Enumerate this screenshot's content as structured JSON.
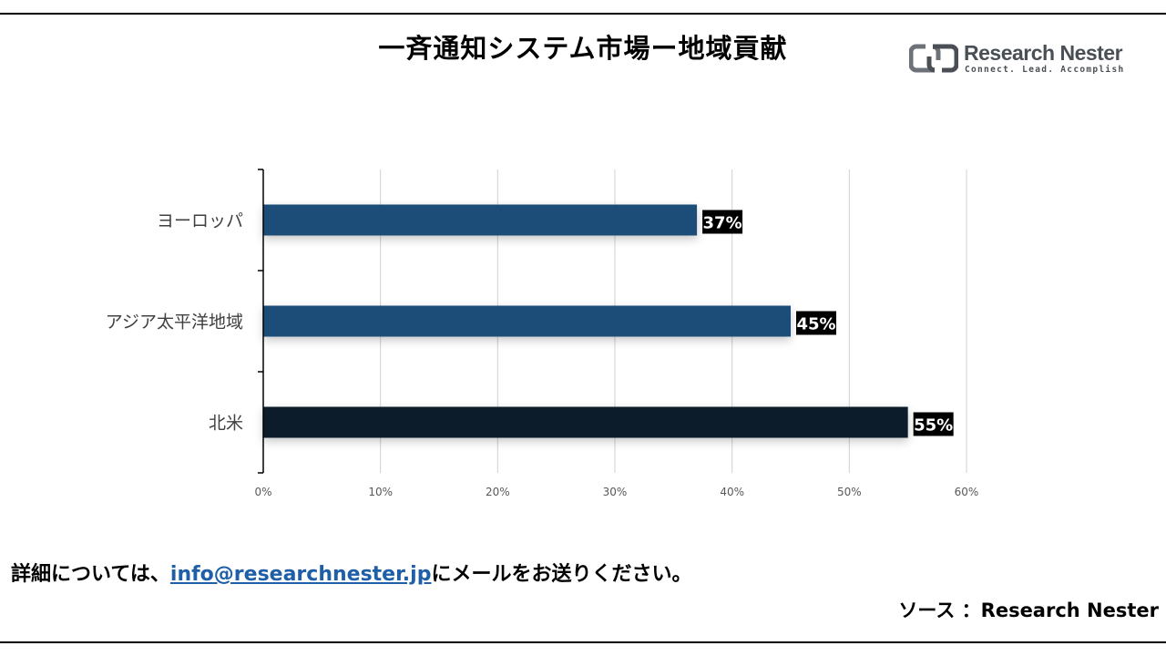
{
  "header": {
    "title": "一斉通知システム市場ー地域貢献"
  },
  "logo": {
    "name": "Research Nester",
    "tagline": "Connect. Lead. Accomplish"
  },
  "chart_data": {
    "type": "bar",
    "orientation": "horizontal",
    "categories": [
      "ヨーロッパ",
      "アジア太平洋地域",
      "北米"
    ],
    "values": [
      37,
      45,
      55
    ],
    "value_labels": [
      "37%",
      "45%",
      "55%"
    ],
    "x_ticks": [
      "0%",
      "10%",
      "20%",
      "30%",
      "40%",
      "50%",
      "60%"
    ],
    "xlim": [
      0,
      60
    ],
    "grid": "vertical",
    "bar_colors": [
      "#1f4e79",
      "#1f4e79",
      "#0d1b2a"
    ],
    "label_bg": "#000000",
    "label_color": "#ffffff"
  },
  "footer": {
    "note_prefix": "詳細については、",
    "email": "info@researchnester.jp",
    "note_suffix": "にメールをお送りください。",
    "source": "ソース ：Research Nester"
  }
}
